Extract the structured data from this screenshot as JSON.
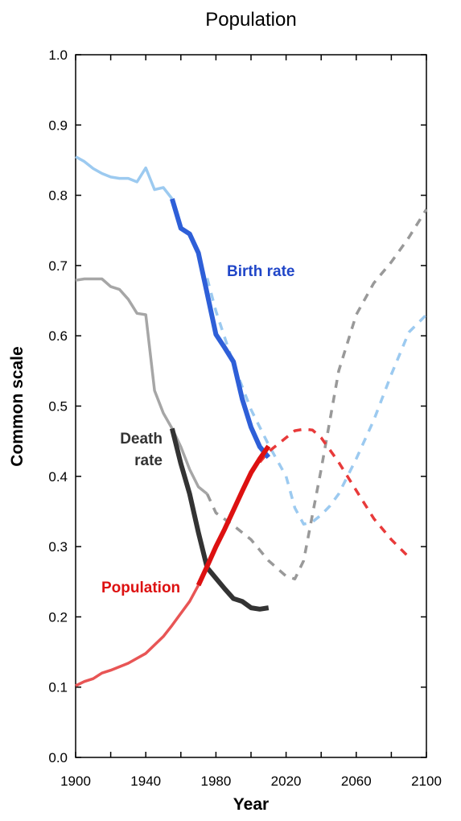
{
  "chart_data": {
    "type": "line",
    "title": "Population",
    "xlabel": "Year",
    "ylabel": "Common scale",
    "xlim": [
      1900,
      2100
    ],
    "ylim": [
      0,
      1
    ],
    "x_ticks": [
      "1900",
      "1940",
      "1980",
      "2020",
      "2060",
      "2100"
    ],
    "y_ticks": [
      "0.0",
      "0.1",
      "0.2",
      "0.3",
      "0.4",
      "0.5",
      "0.6",
      "0.7",
      "0.8",
      "0.9",
      "1.0"
    ],
    "grid": false,
    "series": [
      {
        "name": "Birth rate",
        "colors": {
          "early": "#9ccaf0",
          "observed": "#2e5fd8",
          "projected": "#9ccaf0"
        },
        "early": {
          "x": [
            1900,
            1905,
            1910,
            1915,
            1920,
            1925,
            1930,
            1935,
            1940,
            1945,
            1950,
            1955
          ],
          "y": [
            0.855,
            0.848,
            0.838,
            0.831,
            0.826,
            0.824,
            0.824,
            0.819,
            0.839,
            0.808,
            0.811,
            0.795
          ]
        },
        "observed": {
          "x": [
            1955,
            1960,
            1965,
            1970,
            1975,
            1980,
            1985,
            1990,
            1995,
            2000,
            2005,
            2010
          ],
          "y": [
            0.795,
            0.753,
            0.745,
            0.718,
            0.66,
            0.602,
            0.583,
            0.563,
            0.51,
            0.47,
            0.442,
            0.427
          ]
        },
        "projected": {
          "x": [
            1975,
            1980,
            1990,
            2000,
            2010,
            2020,
            2025,
            2030,
            2035,
            2040,
            2045,
            2050,
            2060,
            2070,
            2080,
            2090,
            2100
          ],
          "y": [
            0.682,
            0.635,
            0.56,
            0.495,
            0.445,
            0.4,
            0.355,
            0.332,
            0.335,
            0.345,
            0.358,
            0.375,
            0.425,
            0.48,
            0.545,
            0.605,
            0.63
          ]
        }
      },
      {
        "name": "Death rate",
        "colors": {
          "early": "#a6a6a6",
          "observed": "#333333",
          "projected": "#999999"
        },
        "early": {
          "x": [
            1900,
            1905,
            1910,
            1915,
            1920,
            1925,
            1930,
            1935,
            1940,
            1945,
            1950,
            1955,
            1960,
            1965,
            1970,
            1975
          ],
          "y": [
            0.679,
            0.681,
            0.681,
            0.681,
            0.67,
            0.666,
            0.652,
            0.632,
            0.63,
            0.522,
            0.49,
            0.468,
            0.442,
            0.41,
            0.385,
            0.375
          ]
        },
        "observed": {
          "x": [
            1955,
            1960,
            1965,
            1970,
            1975,
            1980,
            1985,
            1990,
            1995,
            2000,
            2005,
            2010
          ],
          "y": [
            0.468,
            0.418,
            0.375,
            0.32,
            0.27,
            0.255,
            0.24,
            0.226,
            0.222,
            0.213,
            0.211,
            0.213
          ]
        },
        "projected": {
          "x": [
            1975,
            1980,
            1990,
            2000,
            2010,
            2020,
            2025,
            2030,
            2040,
            2050,
            2060,
            2070,
            2080,
            2090,
            2100
          ],
          "y": [
            0.375,
            0.348,
            0.33,
            0.31,
            0.28,
            0.258,
            0.254,
            0.28,
            0.41,
            0.55,
            0.63,
            0.675,
            0.705,
            0.74,
            0.78
          ]
        }
      },
      {
        "name": "Population",
        "colors": {
          "early": "#e85555",
          "observed": "#dd1111",
          "projected": "#e83a3a"
        },
        "early": {
          "x": [
            1900,
            1905,
            1910,
            1915,
            1920,
            1925,
            1930,
            1935,
            1940,
            1945,
            1950,
            1955,
            1960,
            1965,
            1970
          ],
          "y": [
            0.102,
            0.108,
            0.112,
            0.12,
            0.124,
            0.129,
            0.134,
            0.141,
            0.148,
            0.16,
            0.172,
            0.188,
            0.205,
            0.222,
            0.245
          ]
        },
        "observed": {
          "x": [
            1970,
            1975,
            1980,
            1985,
            1990,
            1995,
            2000,
            2005,
            2010
          ],
          "y": [
            0.245,
            0.272,
            0.3,
            0.325,
            0.352,
            0.379,
            0.405,
            0.425,
            0.443
          ]
        },
        "projected": {
          "x": [
            2005,
            2010,
            2020,
            2025,
            2030,
            2035,
            2040,
            2050,
            2060,
            2070,
            2080,
            2090
          ],
          "y": [
            0.42,
            0.435,
            0.455,
            0.465,
            0.467,
            0.466,
            0.455,
            0.42,
            0.38,
            0.34,
            0.31,
            0.285
          ]
        }
      }
    ],
    "annotations": [
      {
        "text": "Birth rate",
        "color": "#2046c8"
      },
      {
        "text": "Death",
        "color": "#333333"
      },
      {
        "text": "rate",
        "color": "#333333"
      },
      {
        "text": "Population",
        "color": "#dd1111"
      }
    ]
  }
}
